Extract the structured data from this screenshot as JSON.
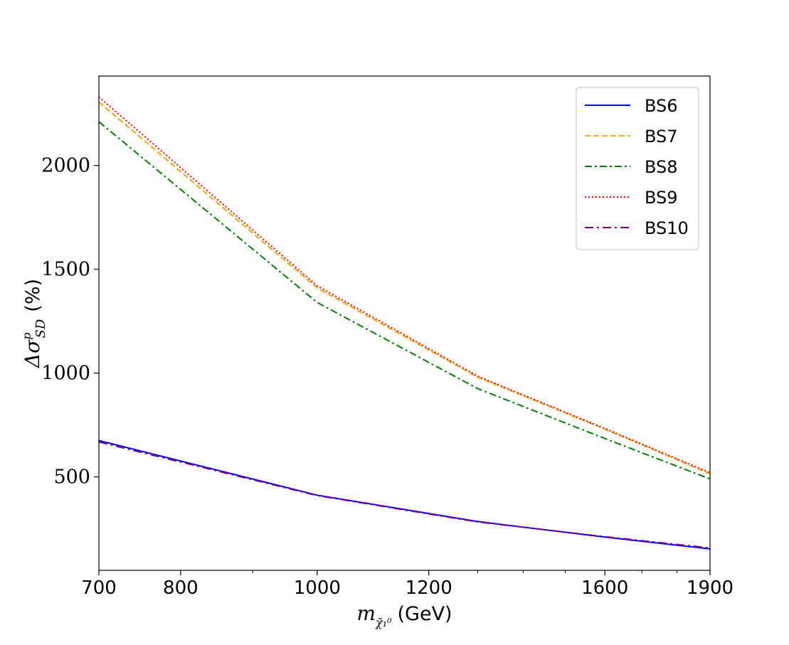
{
  "chart_data": {
    "type": "line",
    "title": "",
    "xlabel_math": "m",
    "xlabel_sub": "χ̃₁⁰",
    "xlabel_unit": "(GeV)",
    "ylabel_math": "Δσ",
    "ylabel_sup": "p",
    "ylabel_sub": "SD",
    "ylabel_unit": "(%)",
    "x_scale": "log",
    "xlim": [
      700,
      1900
    ],
    "ylim": [
      50,
      2430
    ],
    "x_ticks": [
      700,
      800,
      1000,
      1200,
      1600,
      1900
    ],
    "x_tick_labels": [
      "700",
      "800",
      "1000",
      "1200",
      "1600",
      "1900"
    ],
    "x_minor_ticks": [
      900,
      1300,
      1400,
      1500,
      1700,
      1800
    ],
    "y_ticks": [
      500,
      1000,
      1500,
      2000
    ],
    "y_tick_labels": [
      "500",
      "1000",
      "1500",
      "2000"
    ],
    "grid": false,
    "legend_position": "top-right",
    "x": [
      700,
      1000,
      1300,
      1600,
      1900
    ],
    "series": [
      {
        "name": "BS6",
        "color": "#0000ff",
        "dash": "solid",
        "values": [
          675,
          412,
          285,
          210,
          153
        ]
      },
      {
        "name": "BS7",
        "color": "#ffa500",
        "dash": "dashed",
        "values": [
          2305,
          1410,
          980,
          730,
          515
        ]
      },
      {
        "name": "BS8",
        "color": "#008000",
        "dash": "dashdot",
        "values": [
          2210,
          1340,
          925,
          685,
          490
        ]
      },
      {
        "name": "BS9",
        "color": "#ff0000",
        "dash": "dotted",
        "values": [
          2330,
          1420,
          985,
          733,
          520
        ]
      },
      {
        "name": "BS10",
        "color": "#800080",
        "dash": "dashdot2",
        "values": [
          668,
          410,
          283,
          212,
          158
        ]
      }
    ]
  }
}
